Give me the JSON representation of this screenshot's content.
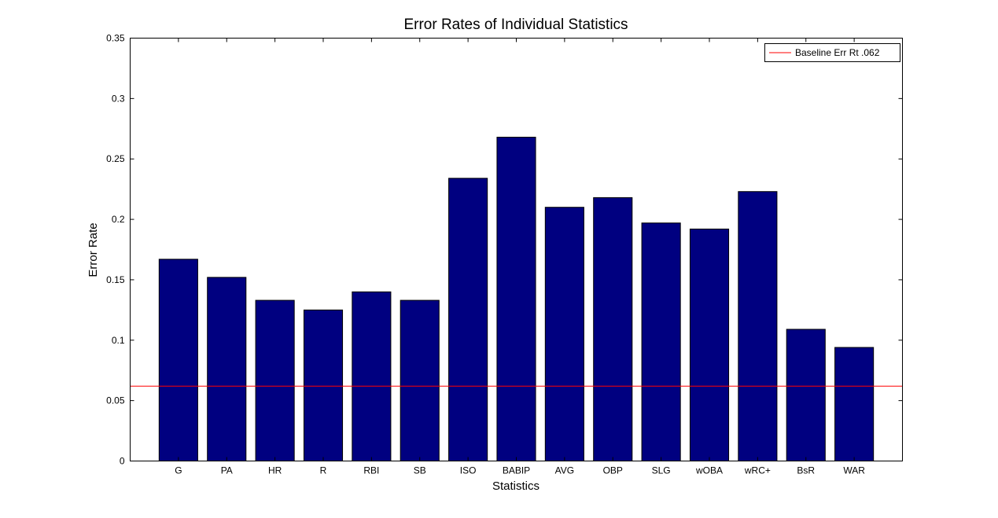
{
  "chart_data": {
    "type": "bar",
    "title": "Error Rates of Individual Statistics",
    "xlabel": "Statistics",
    "ylabel": "Error Rate",
    "ylim": [
      0,
      0.35
    ],
    "yticks": [
      "0",
      "0.05",
      "0.1",
      "0.15",
      "0.2",
      "0.25",
      "0.3",
      "0.35"
    ],
    "categories": [
      "G",
      "PA",
      "HR",
      "R",
      "RBI",
      "SB",
      "ISO",
      "BABIP",
      "AVG",
      "OBP",
      "SLG",
      "wOBA",
      "wRC+",
      "BsR",
      "WAR"
    ],
    "values": [
      0.167,
      0.152,
      0.133,
      0.125,
      0.14,
      0.133,
      0.234,
      0.268,
      0.21,
      0.218,
      0.197,
      0.192,
      0.223,
      0.109,
      0.094
    ],
    "bar_color": "#000080",
    "baseline": {
      "name": "Baseline Err Rt .062",
      "value": 0.062,
      "color": "#ff0000"
    },
    "legend_position": "top-right",
    "grid": false
  }
}
